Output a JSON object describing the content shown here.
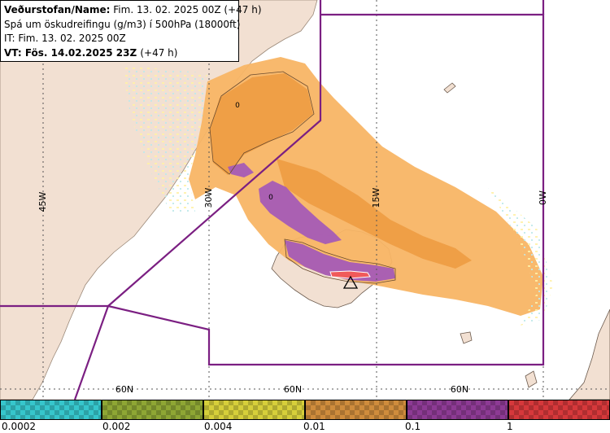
{
  "title": {
    "name_label": "Veðurstofan/Name:",
    "name_value": "Fim. 13. 02. 2025 00Z (+47 h)",
    "forecast": "Spá um öskudreifingu (g/m3) í 500hPa (18000ft)",
    "it_line": "IT: Fim. 13. 02. 2025 00Z",
    "vt_label": "VT:",
    "vt_value": "Fös. 14.02.2025 23Z",
    "vt_suffix": "(+47 h)"
  },
  "map_labels": {
    "lon_45w": "45W",
    "lon_30w": "30W",
    "lon_15w": "15W",
    "lon_0w": "0W",
    "lat_60n_a": "60N",
    "lat_60n_b": "60N",
    "lat_60n_c": "60N",
    "contour_0_a": "0",
    "contour_0_b": "0"
  },
  "legend": {
    "labels": [
      "0.0002",
      "0.002",
      "0.004",
      "0.01",
      "0.1",
      "1"
    ],
    "colors": [
      "#36c6cc",
      "#8ea634",
      "#d6cf3a",
      "#cf8c3c",
      "#8d3a94",
      "#d6383b"
    ]
  },
  "colors": {
    "land": "#f2e0d2",
    "sea": "#ffffff",
    "fir_boundary": "#7b1f82",
    "ash_light": "#f8b565",
    "ash_dark": "#ee9d45",
    "ash_purple": "#a55bb6",
    "ash_red": "#f05a5a"
  }
}
